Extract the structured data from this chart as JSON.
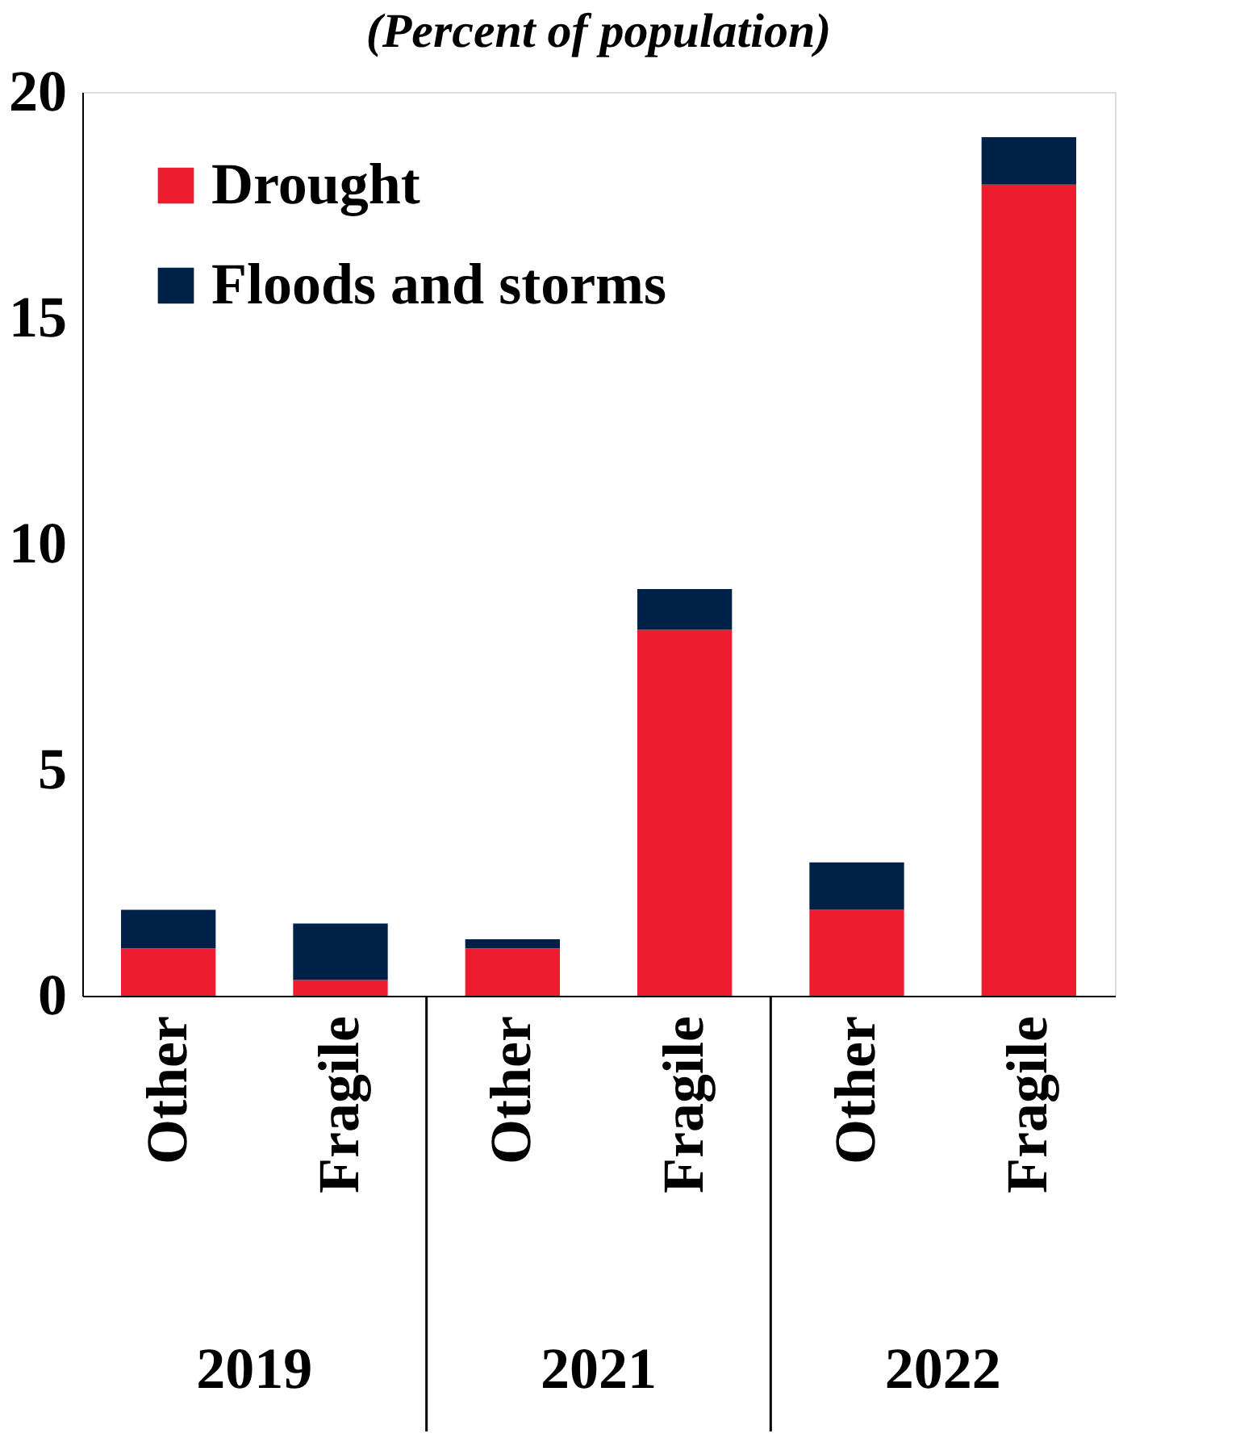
{
  "chart_data": {
    "type": "bar",
    "title": "(Percent of population)",
    "stacked": true,
    "categories": [
      "Other",
      "Fragile",
      "Other",
      "Fragile",
      "Other",
      "Fragile"
    ],
    "series": [
      {
        "name": "Drought",
        "color": "#ed1c2e",
        "values": [
          1.05,
          0.35,
          1.05,
          8.1,
          1.9,
          17.95
        ]
      },
      {
        "name": "Floods and storms",
        "color": "#002147",
        "values": [
          0.85,
          1.25,
          0.2,
          0.9,
          1.05,
          1.05
        ]
      }
    ],
    "ylim": [
      0,
      20
    ],
    "yticks": [
      0,
      5,
      10,
      15,
      20
    ],
    "grid": false,
    "legend": "top left",
    "annotations": [
      "2019",
      "2021",
      "2022"
    ]
  }
}
